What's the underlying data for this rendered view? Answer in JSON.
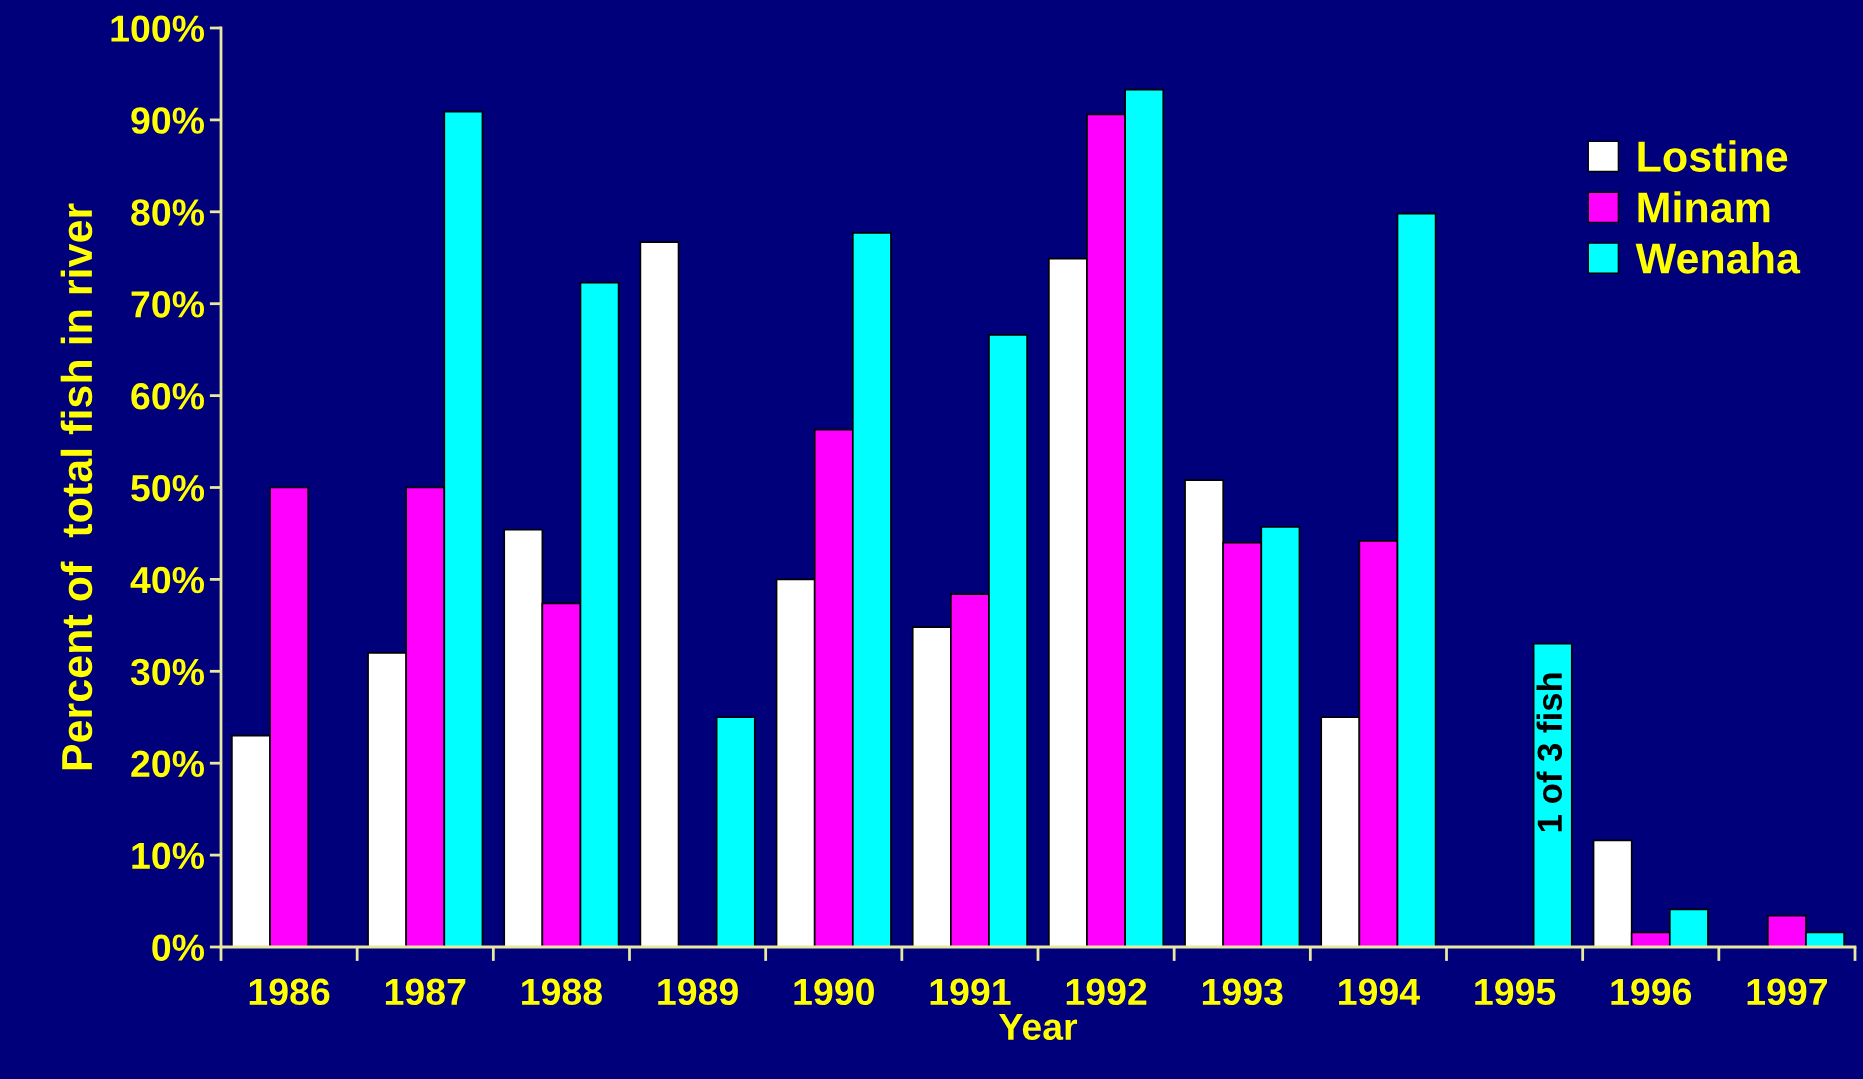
{
  "chart_data": {
    "type": "bar",
    "xlabel": "Year",
    "ylabel": "Percent of  total fish in river",
    "categories": [
      "1986",
      "1987",
      "1988",
      "1989",
      "1990",
      "1991",
      "1992",
      "1993",
      "1994",
      "1995",
      "1996",
      "1997"
    ],
    "series": [
      {
        "name": "Lostine",
        "color": "#ffffff",
        "values": [
          23,
          32,
          45.4,
          76.7,
          40,
          34.8,
          74.9,
          50.8,
          25,
          null,
          11.6,
          null
        ]
      },
      {
        "name": "Minam",
        "color": "#ff00ff",
        "values": [
          50,
          50,
          37.4,
          null,
          56.3,
          38.4,
          90.6,
          44,
          44.2,
          null,
          1.6,
          3.4
        ]
      },
      {
        "name": "Wenaha",
        "color": "#00ffff",
        "values": [
          null,
          90.9,
          72.3,
          25,
          77.7,
          66.6,
          93.3,
          45.7,
          79.8,
          33,
          4.1,
          1.6
        ]
      }
    ],
    "ylim": [
      0,
      100
    ],
    "yticks": [
      {
        "value": 0,
        "label": "0%"
      },
      {
        "value": 10,
        "label": "10%"
      },
      {
        "value": 20,
        "label": "20%"
      },
      {
        "value": 30,
        "label": "30%"
      },
      {
        "value": 40,
        "label": "40%"
      },
      {
        "value": 50,
        "label": "50%"
      },
      {
        "value": 60,
        "label": "60%"
      },
      {
        "value": 70,
        "label": "70%"
      },
      {
        "value": 80,
        "label": "80%"
      },
      {
        "value": 90,
        "label": "90%"
      },
      {
        "value": 100,
        "label": "100%"
      }
    ],
    "annotations": [
      "1 of 3 fish"
    ],
    "legend": "top right",
    "grid": false
  }
}
